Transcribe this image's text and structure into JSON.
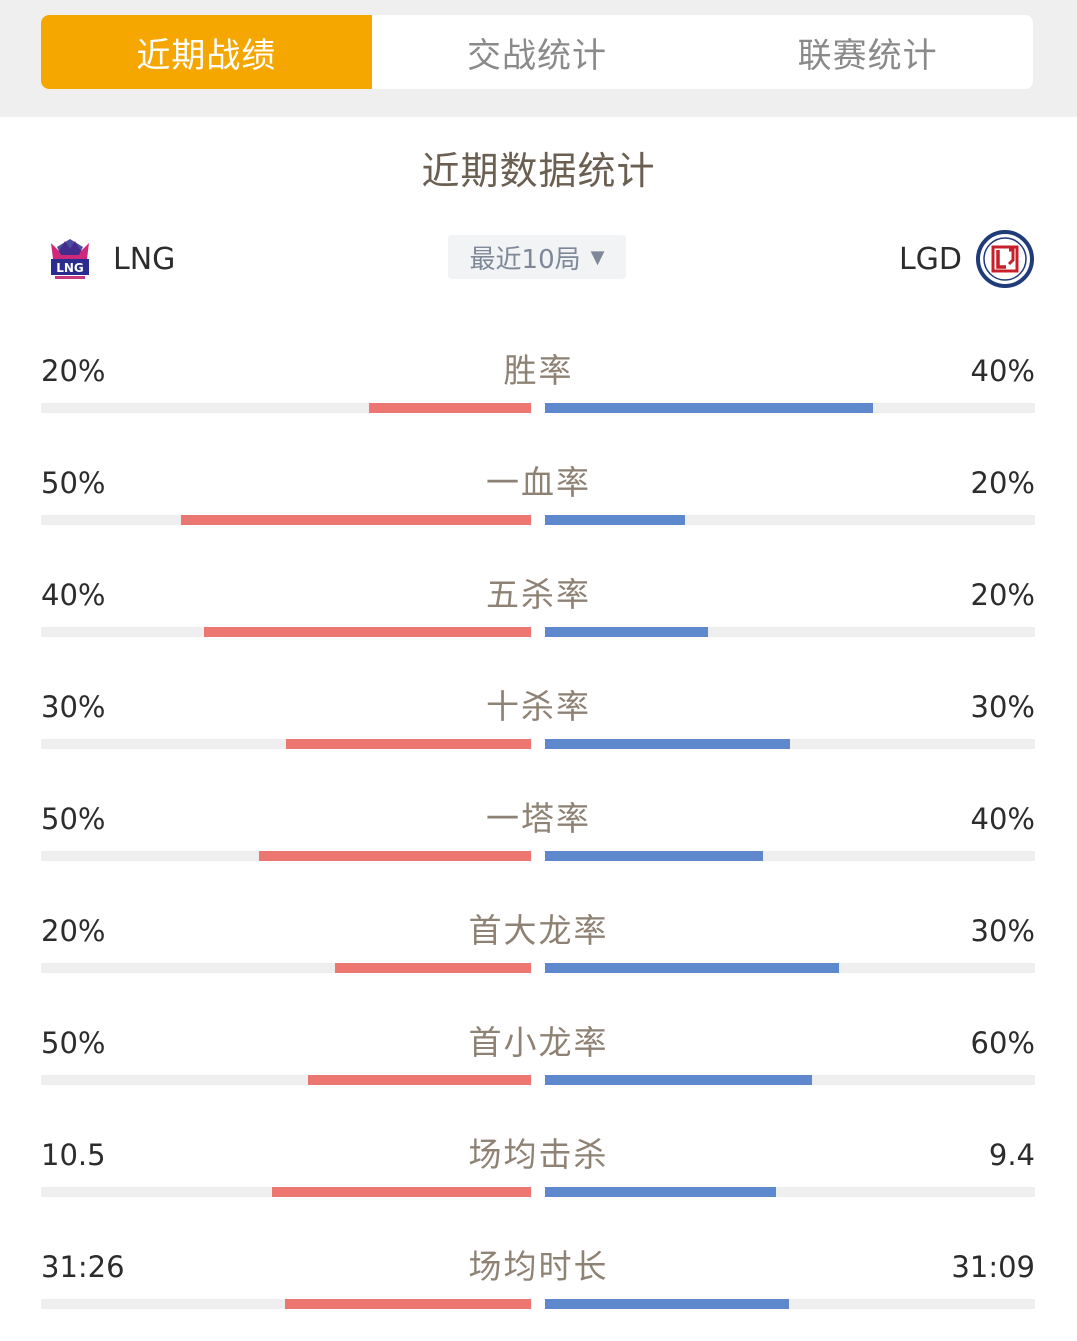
{
  "tabs": [
    {
      "label": "近期战绩",
      "active": true
    },
    {
      "label": "交战统计",
      "active": false
    },
    {
      "label": "联赛统计",
      "active": false
    }
  ],
  "section_title": "近期数据统计",
  "teams": {
    "left": {
      "name": "LNG",
      "logo_text": "LNG",
      "color": "#ec7670"
    },
    "right": {
      "name": "LGD",
      "logo_text": "LGD",
      "color": "#5d88cc"
    }
  },
  "range_select": {
    "label": "最近10局",
    "caret_icon": "caret-down-icon"
  },
  "colors": {
    "accent": "#f5a700",
    "left_bar": "#ec7670",
    "right_bar": "#5d88cc",
    "track": "#eeeeee"
  },
  "stats": [
    {
      "label": "胜率",
      "left": "20%",
      "right": "40%",
      "left_fill": 0.33,
      "right_fill": 0.67
    },
    {
      "label": "一血率",
      "left": "50%",
      "right": "20%",
      "left_fill": 0.714,
      "right_fill": 0.286
    },
    {
      "label": "五杀率",
      "left": "40%",
      "right": "20%",
      "left_fill": 0.667,
      "right_fill": 0.333
    },
    {
      "label": "十杀率",
      "left": "30%",
      "right": "30%",
      "left_fill": 0.5,
      "right_fill": 0.5
    },
    {
      "label": "一塔率",
      "left": "50%",
      "right": "40%",
      "left_fill": 0.556,
      "right_fill": 0.444
    },
    {
      "label": "首大龙率",
      "left": "20%",
      "right": "30%",
      "left_fill": 0.4,
      "right_fill": 0.6
    },
    {
      "label": "首小龙率",
      "left": "50%",
      "right": "60%",
      "left_fill": 0.455,
      "right_fill": 0.545
    },
    {
      "label": "场均击杀",
      "left": "10.5",
      "right": "9.4",
      "left_fill": 0.528,
      "right_fill": 0.472
    },
    {
      "label": "场均时长",
      "left": "31:26",
      "right": "31:09",
      "left_fill": 0.502,
      "right_fill": 0.498
    }
  ]
}
